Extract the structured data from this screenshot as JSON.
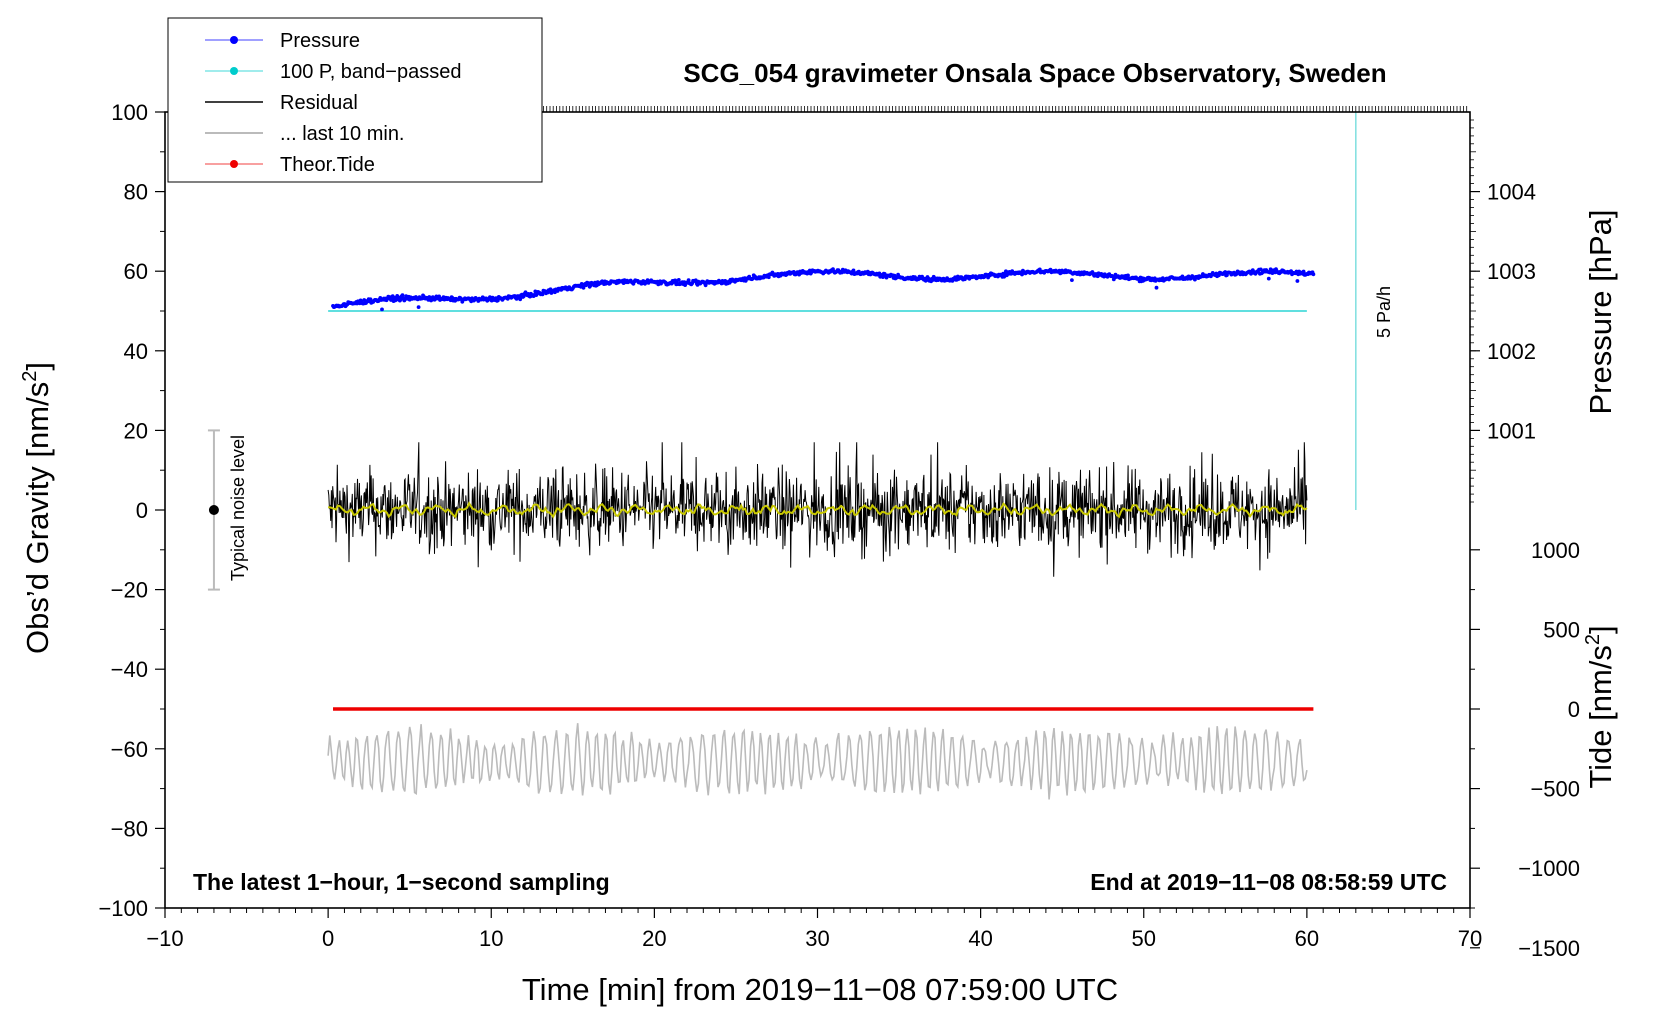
{
  "chart_data": {
    "type": "line",
    "title": "SCG_054 gravimeter Onsala Space Observatory, Sweden",
    "xlabel": "Time [min] from 2019−11−08 07:59:00 UTC",
    "ylabel": "Obs’d Gravity [nm/s²]",
    "ylabel_main": "Obs’d Gravity [nm/s",
    "ylabel_sup": "2",
    "ylabel_close": "]",
    "y_pressure_label": "Pressure [hPa]",
    "y_tide_label_main": "Tide [nm/s",
    "y_tide_label_sup": "2",
    "y_tide_label_close": "]",
    "xlim": [
      -10,
      70
    ],
    "ylim": [
      -100,
      100
    ],
    "x_ticks": [
      "−10",
      "0",
      "10",
      "20",
      "30",
      "40",
      "50",
      "60",
      "70"
    ],
    "x_tick_values": [
      -10,
      0,
      10,
      20,
      30,
      40,
      50,
      60,
      70
    ],
    "y_ticks": [
      "−100",
      "−80",
      "−60",
      "−40",
      "−20",
      "0",
      "20",
      "40",
      "60",
      "80",
      "100"
    ],
    "y_tick_values": [
      -100,
      -80,
      -60,
      -40,
      -20,
      0,
      20,
      40,
      60,
      80,
      100
    ],
    "pressure_axis": {
      "ticks": [
        "1001",
        "1002",
        "1003",
        "1004"
      ],
      "tick_values": [
        1001,
        1002,
        1003,
        1004
      ],
      "zero_gravity_at_hpa": 1000,
      "hpa_per_20_gravity": 1
    },
    "tide_axis": {
      "ticks": [
        "1000",
        "500",
        "0",
        "−500",
        "−1000",
        "−1500"
      ],
      "tick_values": [
        1000,
        500,
        0,
        -500,
        -1000,
        -1500
      ],
      "zero_gravity_at": -50,
      "tide_per_gravity": 25
    },
    "series": [
      {
        "name": "Pressure",
        "color": "#0000ff",
        "x_range": [
          0.3,
          60.4
        ],
        "level_start_hpa": 1002.55,
        "level_end_hpa": 1002.95,
        "noise": 0.8
      },
      {
        "name": "100 P, band−passed",
        "color": "#00cccc",
        "x_range": [
          0,
          60
        ],
        "value": 50
      },
      {
        "name": "Residual",
        "color": "#000000",
        "x_range": [
          0,
          60
        ],
        "amplitude": 12
      },
      {
        "name": "... last 10 min.",
        "color": "#bbbbbb",
        "x_range": [
          0,
          60
        ],
        "mean": -63,
        "amplitude": 8
      },
      {
        "name": "Theor.Tide",
        "color": "#ee0000",
        "x_range": [
          0.3,
          60.4
        ],
        "value": 0
      }
    ],
    "smoothed_residual_color": "#c8c800",
    "rate_bar": {
      "label": "5 Pa/h",
      "x": 63,
      "y_range": [
        0,
        100
      ],
      "color": "#7fdfdf"
    },
    "noise_bar": {
      "label": "Typical noise level",
      "x": -7,
      "y_center": 0,
      "y_range": [
        -20,
        20
      ]
    },
    "legend": {
      "position": "top-left",
      "entries": [
        "Pressure",
        "100 P, band−passed",
        "Residual",
        "... last 10 min.",
        "Theor.Tide"
      ]
    },
    "annotations": {
      "bottom_left": "The latest 1−hour, 1−second sampling",
      "bottom_right": "End at 2019−11−08 08:58:59 UTC"
    }
  }
}
